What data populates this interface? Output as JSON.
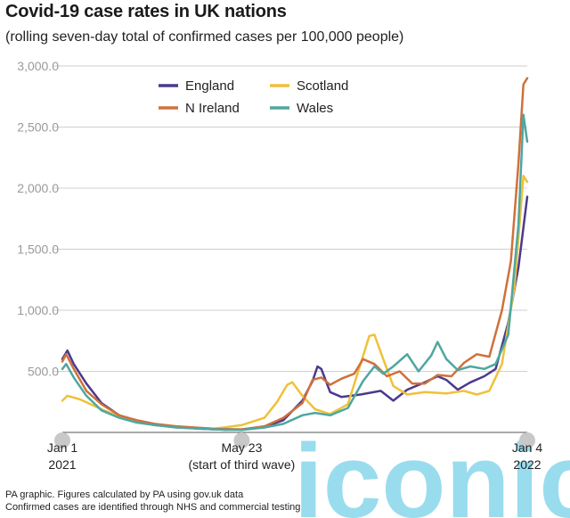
{
  "header": {
    "title": "Covid-19 case rates in UK nations",
    "subtitle": "(rolling seven-day total of confirmed cases per 100,000 people)"
  },
  "footer": {
    "line1": "PA graphic. Figures calculated by PA using gov.uk data",
    "line2": "Confirmed cases are identified through NHS and commercial testing"
  },
  "watermark": {
    "text": "iconic",
    "color": "#7fd3ea"
  },
  "chart_data": {
    "type": "line",
    "title": "Covid-19 case rates in UK nations",
    "subtitle": "(rolling seven-day total of confirmed cases per 100,000 people)",
    "ylim": [
      0,
      3000
    ],
    "xlim": [
      "2021-01-01",
      "2022-01-04"
    ],
    "grid": true,
    "legend_position": "top-center",
    "yticks": [
      "3,000.0",
      "2,500.0",
      "2,000.0",
      "1,500.0",
      "1,000.0",
      "500.0"
    ],
    "xticks": [
      {
        "date": "2021-01-01",
        "line1": "Jan 1",
        "line2": "2021"
      },
      {
        "date": "2021-05-23",
        "line1": "May 23",
        "line2": "(start of third wave)"
      },
      {
        "date": "2022-01-04",
        "line1": "Jan 4",
        "line2": "2022"
      }
    ],
    "series": [
      {
        "name": "England",
        "color": "#4b3a8c",
        "points": [
          [
            "2021-01-01",
            600
          ],
          [
            "2021-01-05",
            670
          ],
          [
            "2021-01-10",
            560
          ],
          [
            "2021-01-20",
            400
          ],
          [
            "2021-02-01",
            240
          ],
          [
            "2021-02-15",
            140
          ],
          [
            "2021-03-01",
            90
          ],
          [
            "2021-03-15",
            60
          ],
          [
            "2021-04-01",
            45
          ],
          [
            "2021-04-20",
            30
          ],
          [
            "2021-05-10",
            22
          ],
          [
            "2021-05-23",
            25
          ],
          [
            "2021-06-10",
            45
          ],
          [
            "2021-06-25",
            100
          ],
          [
            "2021-07-10",
            260
          ],
          [
            "2021-07-18",
            420
          ],
          [
            "2021-07-22",
            540
          ],
          [
            "2021-07-25",
            520
          ],
          [
            "2021-08-01",
            330
          ],
          [
            "2021-08-10",
            290
          ],
          [
            "2021-08-25",
            310
          ],
          [
            "2021-09-10",
            340
          ],
          [
            "2021-09-20",
            260
          ],
          [
            "2021-10-01",
            350
          ],
          [
            "2021-10-15",
            410
          ],
          [
            "2021-10-25",
            460
          ],
          [
            "2021-11-01",
            430
          ],
          [
            "2021-11-10",
            350
          ],
          [
            "2021-11-20",
            410
          ],
          [
            "2021-12-01",
            460
          ],
          [
            "2021-12-10",
            520
          ],
          [
            "2021-12-20",
            900
          ],
          [
            "2021-12-28",
            1350
          ],
          [
            "2022-01-04",
            1930
          ]
        ]
      },
      {
        "name": "Scotland",
        "color": "#efc13a",
        "points": [
          [
            "2021-01-01",
            260
          ],
          [
            "2021-01-05",
            300
          ],
          [
            "2021-01-15",
            270
          ],
          [
            "2021-02-01",
            190
          ],
          [
            "2021-02-15",
            130
          ],
          [
            "2021-03-01",
            90
          ],
          [
            "2021-03-20",
            60
          ],
          [
            "2021-04-10",
            40
          ],
          [
            "2021-05-01",
            30
          ],
          [
            "2021-05-23",
            60
          ],
          [
            "2021-06-10",
            120
          ],
          [
            "2021-06-20",
            250
          ],
          [
            "2021-06-28",
            390
          ],
          [
            "2021-07-02",
            410
          ],
          [
            "2021-07-10",
            300
          ],
          [
            "2021-07-20",
            190
          ],
          [
            "2021-08-01",
            150
          ],
          [
            "2021-08-15",
            230
          ],
          [
            "2021-08-25",
            560
          ],
          [
            "2021-09-01",
            790
          ],
          [
            "2021-09-05",
            800
          ],
          [
            "2021-09-12",
            600
          ],
          [
            "2021-09-20",
            380
          ],
          [
            "2021-10-01",
            310
          ],
          [
            "2021-10-15",
            330
          ],
          [
            "2021-11-01",
            320
          ],
          [
            "2021-11-15",
            340
          ],
          [
            "2021-11-25",
            310
          ],
          [
            "2021-12-05",
            340
          ],
          [
            "2021-12-15",
            560
          ],
          [
            "2021-12-25",
            1200
          ],
          [
            "2022-01-01",
            2100
          ],
          [
            "2022-01-04",
            2050
          ]
        ]
      },
      {
        "name": "N Ireland",
        "color": "#d0703a",
        "points": [
          [
            "2021-01-01",
            580
          ],
          [
            "2021-01-04",
            640
          ],
          [
            "2021-01-10",
            520
          ],
          [
            "2021-01-20",
            340
          ],
          [
            "2021-02-01",
            230
          ],
          [
            "2021-02-15",
            140
          ],
          [
            "2021-03-01",
            100
          ],
          [
            "2021-03-15",
            70
          ],
          [
            "2021-04-01",
            50
          ],
          [
            "2021-05-01",
            30
          ],
          [
            "2021-05-23",
            25
          ],
          [
            "2021-06-10",
            50
          ],
          [
            "2021-06-25",
            120
          ],
          [
            "2021-07-10",
            240
          ],
          [
            "2021-07-18",
            430
          ],
          [
            "2021-07-25",
            450
          ],
          [
            "2021-08-01",
            390
          ],
          [
            "2021-08-10",
            440
          ],
          [
            "2021-08-20",
            480
          ],
          [
            "2021-08-27",
            600
          ],
          [
            "2021-09-05",
            560
          ],
          [
            "2021-09-15",
            460
          ],
          [
            "2021-09-25",
            500
          ],
          [
            "2021-10-05",
            400
          ],
          [
            "2021-10-15",
            400
          ],
          [
            "2021-10-25",
            470
          ],
          [
            "2021-11-05",
            460
          ],
          [
            "2021-11-15",
            570
          ],
          [
            "2021-11-25",
            640
          ],
          [
            "2021-12-05",
            620
          ],
          [
            "2021-12-15",
            1000
          ],
          [
            "2021-12-22",
            1400
          ],
          [
            "2021-12-28",
            2200
          ],
          [
            "2022-01-01",
            2850
          ],
          [
            "2022-01-04",
            2900
          ]
        ]
      },
      {
        "name": "Wales",
        "color": "#4ea7a0",
        "points": [
          [
            "2021-01-01",
            520
          ],
          [
            "2021-01-04",
            560
          ],
          [
            "2021-01-10",
            450
          ],
          [
            "2021-01-20",
            300
          ],
          [
            "2021-02-01",
            180
          ],
          [
            "2021-02-15",
            120
          ],
          [
            "2021-03-01",
            80
          ],
          [
            "2021-03-15",
            60
          ],
          [
            "2021-04-01",
            40
          ],
          [
            "2021-05-01",
            25
          ],
          [
            "2021-05-23",
            20
          ],
          [
            "2021-06-10",
            40
          ],
          [
            "2021-06-25",
            70
          ],
          [
            "2021-07-10",
            140
          ],
          [
            "2021-07-20",
            160
          ],
          [
            "2021-08-01",
            140
          ],
          [
            "2021-08-15",
            200
          ],
          [
            "2021-08-27",
            420
          ],
          [
            "2021-09-05",
            540
          ],
          [
            "2021-09-12",
            480
          ],
          [
            "2021-09-20",
            540
          ],
          [
            "2021-10-01",
            640
          ],
          [
            "2021-10-10",
            500
          ],
          [
            "2021-10-20",
            630
          ],
          [
            "2021-10-25",
            740
          ],
          [
            "2021-11-01",
            600
          ],
          [
            "2021-11-10",
            510
          ],
          [
            "2021-11-20",
            540
          ],
          [
            "2021-12-01",
            520
          ],
          [
            "2021-12-10",
            560
          ],
          [
            "2021-12-20",
            800
          ],
          [
            "2021-12-28",
            1700
          ],
          [
            "2022-01-01",
            2600
          ],
          [
            "2022-01-04",
            2380
          ]
        ]
      }
    ]
  }
}
